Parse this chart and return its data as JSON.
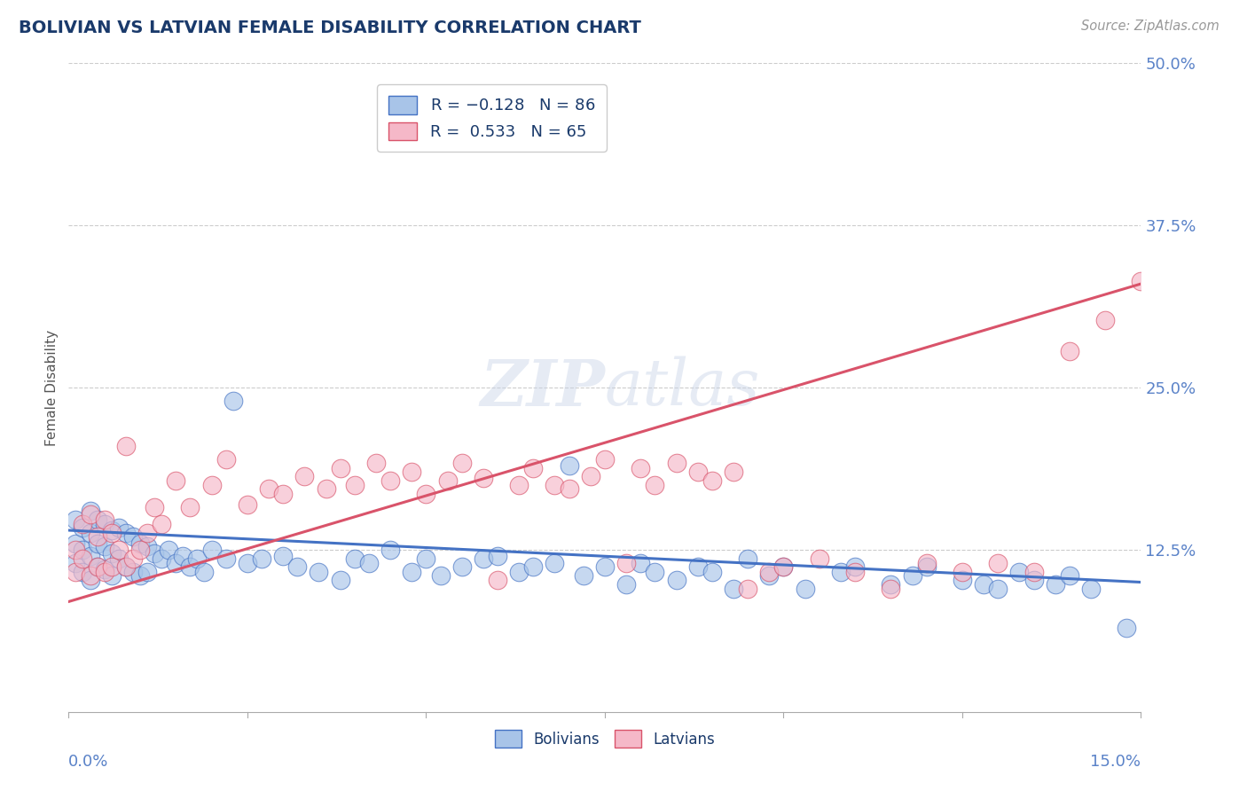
{
  "title": "BOLIVIAN VS LATVIAN FEMALE DISABILITY CORRELATION CHART",
  "source": "Source: ZipAtlas.com",
  "xmin": 0.0,
  "xmax": 0.15,
  "ymin": 0.0,
  "ymax": 0.5,
  "ylabel_ticks": [
    0.0,
    0.125,
    0.25,
    0.375,
    0.5
  ],
  "ylabel_labels": [
    "",
    "12.5%",
    "25.0%",
    "37.5%",
    "50.0%"
  ],
  "bolivian_R": -0.128,
  "bolivian_N": 86,
  "latvian_R": 0.533,
  "latvian_N": 65,
  "bolivian_color": "#a8c4e8",
  "latvian_color": "#f5b8c8",
  "bolivian_line_color": "#4472c4",
  "latvian_line_color": "#d9536a",
  "scatter_alpha": 0.65,
  "scatter_size": 220,
  "watermark_color": "#c8d4e8",
  "watermark_alpha": 0.45,
  "bolivian_x": [
    0.001,
    0.001,
    0.001,
    0.002,
    0.002,
    0.002,
    0.003,
    0.003,
    0.003,
    0.003,
    0.004,
    0.004,
    0.004,
    0.005,
    0.005,
    0.005,
    0.006,
    0.006,
    0.006,
    0.007,
    0.007,
    0.008,
    0.008,
    0.009,
    0.009,
    0.01,
    0.01,
    0.011,
    0.011,
    0.012,
    0.013,
    0.014,
    0.015,
    0.016,
    0.017,
    0.018,
    0.019,
    0.02,
    0.022,
    0.023,
    0.025,
    0.027,
    0.03,
    0.032,
    0.035,
    0.038,
    0.04,
    0.042,
    0.045,
    0.048,
    0.05,
    0.052,
    0.055,
    0.058,
    0.06,
    0.063,
    0.065,
    0.068,
    0.07,
    0.072,
    0.075,
    0.078,
    0.08,
    0.082,
    0.085,
    0.088,
    0.09,
    0.093,
    0.095,
    0.098,
    0.1,
    0.103,
    0.108,
    0.11,
    0.115,
    0.118,
    0.12,
    0.125,
    0.128,
    0.13,
    0.133,
    0.135,
    0.138,
    0.14,
    0.143,
    0.148
  ],
  "bolivian_y": [
    0.13,
    0.148,
    0.115,
    0.142,
    0.125,
    0.108,
    0.155,
    0.138,
    0.12,
    0.102,
    0.148,
    0.13,
    0.112,
    0.145,
    0.128,
    0.11,
    0.14,
    0.122,
    0.105,
    0.142,
    0.118,
    0.138,
    0.112,
    0.135,
    0.108,
    0.13,
    0.105,
    0.128,
    0.108,
    0.122,
    0.118,
    0.125,
    0.115,
    0.12,
    0.112,
    0.118,
    0.108,
    0.125,
    0.118,
    0.24,
    0.115,
    0.118,
    0.12,
    0.112,
    0.108,
    0.102,
    0.118,
    0.115,
    0.125,
    0.108,
    0.118,
    0.105,
    0.112,
    0.118,
    0.12,
    0.108,
    0.112,
    0.115,
    0.19,
    0.105,
    0.112,
    0.098,
    0.115,
    0.108,
    0.102,
    0.112,
    0.108,
    0.095,
    0.118,
    0.105,
    0.112,
    0.095,
    0.108,
    0.112,
    0.098,
    0.105,
    0.112,
    0.102,
    0.098,
    0.095,
    0.108,
    0.102,
    0.098,
    0.105,
    0.095,
    0.065
  ],
  "latvian_x": [
    0.001,
    0.001,
    0.002,
    0.002,
    0.003,
    0.003,
    0.004,
    0.004,
    0.005,
    0.005,
    0.006,
    0.006,
    0.007,
    0.008,
    0.008,
    0.009,
    0.01,
    0.011,
    0.012,
    0.013,
    0.015,
    0.017,
    0.02,
    0.022,
    0.025,
    0.028,
    0.03,
    0.033,
    0.036,
    0.038,
    0.04,
    0.043,
    0.045,
    0.048,
    0.05,
    0.053,
    0.055,
    0.058,
    0.06,
    0.063,
    0.065,
    0.068,
    0.07,
    0.073,
    0.075,
    0.078,
    0.08,
    0.082,
    0.085,
    0.088,
    0.09,
    0.093,
    0.095,
    0.098,
    0.1,
    0.105,
    0.11,
    0.115,
    0.12,
    0.125,
    0.13,
    0.135,
    0.14,
    0.145,
    0.15
  ],
  "latvian_y": [
    0.125,
    0.108,
    0.145,
    0.118,
    0.152,
    0.105,
    0.135,
    0.112,
    0.148,
    0.108,
    0.138,
    0.112,
    0.125,
    0.205,
    0.112,
    0.118,
    0.125,
    0.138,
    0.158,
    0.145,
    0.178,
    0.158,
    0.175,
    0.195,
    0.16,
    0.172,
    0.168,
    0.182,
    0.172,
    0.188,
    0.175,
    0.192,
    0.178,
    0.185,
    0.168,
    0.178,
    0.192,
    0.18,
    0.102,
    0.175,
    0.188,
    0.175,
    0.172,
    0.182,
    0.195,
    0.115,
    0.188,
    0.175,
    0.192,
    0.185,
    0.178,
    0.185,
    0.095,
    0.108,
    0.112,
    0.118,
    0.108,
    0.095,
    0.115,
    0.108,
    0.115,
    0.108,
    0.278,
    0.302,
    0.332
  ]
}
